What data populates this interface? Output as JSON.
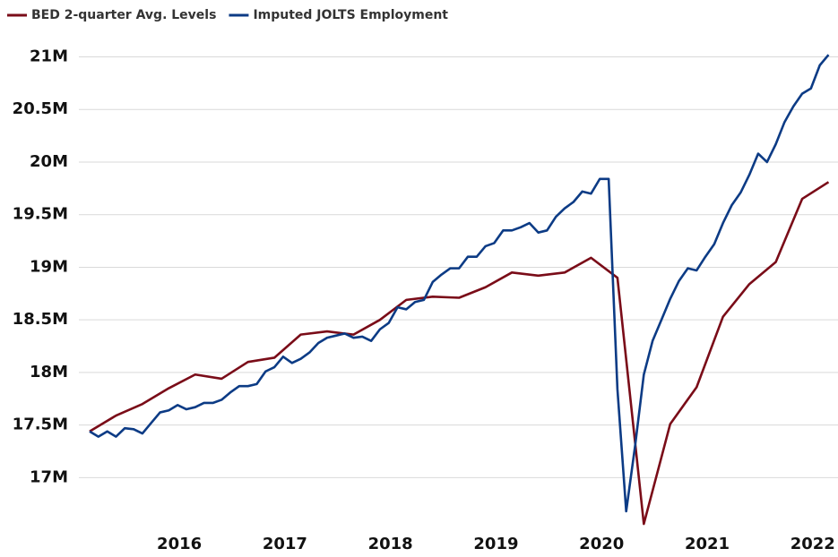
{
  "chart_data": {
    "type": "line",
    "series": [
      {
        "name": "BED 2-quarter Avg. Levels",
        "color": "#7a0c18",
        "x": [
          2015.15,
          2015.4,
          2015.65,
          2015.9,
          2016.15,
          2016.4,
          2016.65,
          2016.9,
          2017.15,
          2017.4,
          2017.65,
          2017.9,
          2018.15,
          2018.4,
          2018.65,
          2018.9,
          2019.15,
          2019.4,
          2019.65,
          2019.9,
          2020.15,
          2020.4,
          2020.65,
          2020.9,
          2021.15,
          2021.4,
          2021.65,
          2021.9,
          2022.15
        ],
        "values": [
          17.44,
          17.59,
          17.7,
          17.85,
          17.98,
          17.94,
          18.1,
          18.14,
          18.36,
          18.39,
          18.36,
          18.5,
          18.69,
          18.72,
          18.71,
          18.81,
          18.95,
          18.92,
          18.95,
          19.09,
          18.9,
          16.56,
          17.51,
          17.86,
          18.53,
          18.84,
          19.05,
          19.65,
          19.81
        ]
      },
      {
        "name": "Imputed JOLTS Employment",
        "color": "#0c3b85",
        "x": [
          2015.15,
          2015.233,
          2015.317,
          2015.4,
          2015.483,
          2015.567,
          2015.65,
          2015.733,
          2015.817,
          2015.9,
          2015.983,
          2016.067,
          2016.15,
          2016.233,
          2016.317,
          2016.4,
          2016.483,
          2016.567,
          2016.65,
          2016.733,
          2016.817,
          2016.9,
          2016.983,
          2017.067,
          2017.15,
          2017.233,
          2017.317,
          2017.4,
          2017.483,
          2017.567,
          2017.65,
          2017.733,
          2017.817,
          2017.9,
          2017.983,
          2018.067,
          2018.15,
          2018.233,
          2018.317,
          2018.4,
          2018.483,
          2018.567,
          2018.65,
          2018.733,
          2018.817,
          2018.9,
          2018.983,
          2019.067,
          2019.15,
          2019.233,
          2019.317,
          2019.4,
          2019.483,
          2019.567,
          2019.65,
          2019.733,
          2019.817,
          2019.9,
          2019.983,
          2020.067,
          2020.15,
          2020.233,
          2020.317,
          2020.4,
          2020.483,
          2020.567,
          2020.65,
          2020.733,
          2020.817,
          2020.9,
          2020.983,
          2021.067,
          2021.15,
          2021.233,
          2021.317,
          2021.4,
          2021.483,
          2021.567,
          2021.65,
          2021.733,
          2021.817,
          2021.9,
          2021.983,
          2022.067,
          2022.15
        ],
        "values": [
          17.44,
          17.39,
          17.44,
          17.39,
          17.47,
          17.46,
          17.42,
          17.52,
          17.62,
          17.64,
          17.69,
          17.65,
          17.67,
          17.71,
          17.71,
          17.74,
          17.81,
          17.87,
          17.87,
          17.89,
          18.01,
          18.05,
          18.15,
          18.09,
          18.13,
          18.19,
          18.28,
          18.33,
          18.35,
          18.37,
          18.33,
          18.34,
          18.3,
          18.41,
          18.47,
          18.62,
          18.6,
          18.67,
          18.69,
          18.86,
          18.93,
          18.99,
          18.99,
          19.1,
          19.1,
          19.2,
          19.23,
          19.35,
          19.35,
          19.38,
          19.42,
          19.33,
          19.35,
          19.48,
          19.56,
          19.62,
          19.72,
          19.7,
          19.84,
          19.84,
          17.84,
          16.68,
          17.3,
          17.98,
          18.3,
          18.5,
          18.7,
          18.87,
          18.99,
          18.97,
          19.1,
          19.22,
          19.42,
          19.59,
          19.71,
          19.88,
          20.08,
          20.0,
          20.17,
          20.38,
          20.53,
          20.65,
          20.7,
          20.92,
          21.02
        ]
      }
    ],
    "xlim": [
      2015.15,
      2022.18
    ],
    "xticks": [
      2016,
      2017,
      2018,
      2019,
      2020,
      2021,
      2022
    ],
    "ylim": [
      16.45,
      21.2
    ],
    "yticks": [
      {
        "value": 17,
        "label": "17M"
      },
      {
        "value": 17.5,
        "label": "17.5M"
      },
      {
        "value": 18,
        "label": "18M"
      },
      {
        "value": 18.5,
        "label": "18.5M"
      },
      {
        "value": 19,
        "label": "19M"
      },
      {
        "value": 19.5,
        "label": "19.5M"
      },
      {
        "value": 20,
        "label": "20M"
      },
      {
        "value": 20.5,
        "label": "20.5M"
      },
      {
        "value": 21,
        "label": "21M"
      }
    ],
    "grid": true
  }
}
